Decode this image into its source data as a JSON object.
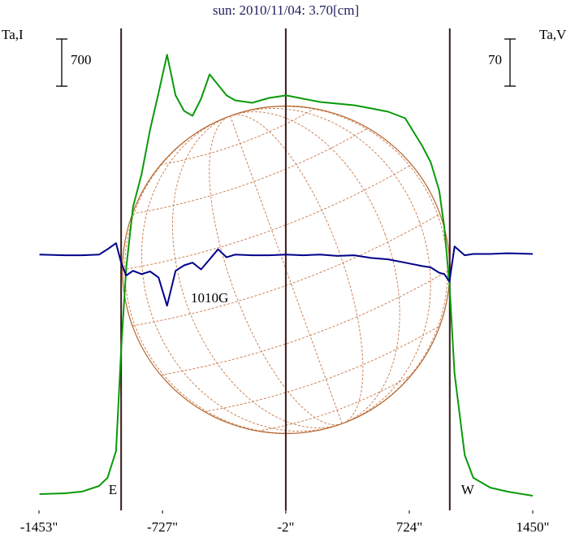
{
  "chart_data": {
    "type": "line",
    "title": "sun: 2010/11/04: 3.70[cm]",
    "ylabel": "Ta,I",
    "y2label": "Ta,V",
    "x": [
      -1450,
      -1300,
      -1200,
      -1100,
      -1050,
      -1000,
      -970,
      -940,
      -900,
      -850,
      -800,
      -750,
      -700,
      -650,
      -600,
      -550,
      -500,
      -450,
      -400,
      -350,
      -300,
      -200,
      -100,
      0,
      100,
      200,
      300,
      400,
      500,
      600,
      700,
      800,
      850,
      900,
      930,
      960,
      990,
      1050,
      1100,
      1200,
      1300,
      1450
    ],
    "series": [
      {
        "name": "I",
        "color": "#0a9a0a",
        "values": [
          241,
          253,
          278,
          362,
          483,
          881,
          2390,
          3597,
          4502,
          4985,
          5649,
          6192,
          6759,
          6156,
          5926,
          5854,
          6107,
          6469,
          6313,
          6156,
          6083,
          6047,
          6119,
          6156,
          6107,
          6059,
          6035,
          6011,
          5963,
          5914,
          5818,
          5407,
          5166,
          4744,
          4200,
          3355,
          2028,
          821,
          483,
          338,
          278,
          217
        ]
      },
      {
        "name": "V",
        "color": "#00008b",
        "axis": "y2",
        "values": [
          0,
          -1,
          -1,
          0,
          8,
          17,
          -12,
          -31,
          -24,
          -29,
          -25,
          -34,
          -76,
          -24,
          -16,
          -12,
          -22,
          -7,
          8,
          -4,
          0,
          -1,
          -1,
          0,
          -1,
          0,
          -2,
          -1,
          -5,
          -7,
          -12,
          -17,
          -19,
          -27,
          -29,
          -40,
          12,
          -1,
          1,
          1,
          2,
          1
        ]
      }
    ],
    "xlim": [
      -1453,
      1450
    ],
    "xticks": [
      {
        "value": -1453,
        "label": "-1453\""
      },
      {
        "value": -727,
        "label": "-727\""
      },
      {
        "value": -2,
        "label": "-2\""
      },
      {
        "value": 724,
        "label": "724\""
      },
      {
        "value": 1450,
        "label": "1450\""
      }
    ],
    "ylim": [
      0,
      7150
    ],
    "y2lim": [
      -380,
      336
    ],
    "y_scale_bar": 700,
    "y2_scale_bar": 70,
    "vlines": [
      -970,
      -2,
      962
    ],
    "disk_radius": 962,
    "annotations": [
      {
        "text": "E",
        "x": -970
      },
      {
        "text": "W",
        "x": 962
      },
      {
        "text": "1010G",
        "x": -560,
        "y": -66
      }
    ]
  }
}
